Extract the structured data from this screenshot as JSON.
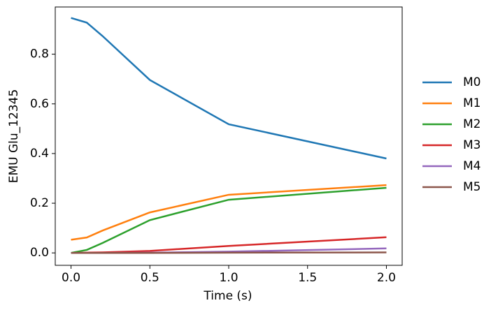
{
  "chart_data": {
    "type": "line",
    "xlabel": "Time (s)",
    "ylabel": "EMU Glu_12345",
    "x": [
      0,
      0.1,
      0.2,
      0.5,
      1.0,
      2.0
    ],
    "series": [
      {
        "name": "M0",
        "color": "#1f77b4",
        "values": [
          0.946,
          0.927,
          0.873,
          0.696,
          0.518,
          0.38
        ]
      },
      {
        "name": "M1",
        "color": "#ff7f0e",
        "values": [
          0.053,
          0.062,
          0.09,
          0.163,
          0.234,
          0.273
        ]
      },
      {
        "name": "M2",
        "color": "#2ca02c",
        "values": [
          0.0,
          0.012,
          0.04,
          0.132,
          0.214,
          0.262
        ]
      },
      {
        "name": "M3",
        "color": "#d62728",
        "values": [
          0.0,
          0.001,
          0.002,
          0.008,
          0.028,
          0.063
        ]
      },
      {
        "name": "M4",
        "color": "#9467bd",
        "values": [
          0.0,
          0.0,
          0.0,
          0.001,
          0.005,
          0.018
        ]
      },
      {
        "name": "M5",
        "color": "#8c564b",
        "values": [
          0.0,
          0.0,
          0.0,
          0.0,
          0.001,
          0.002
        ]
      }
    ],
    "xlim": [
      -0.1,
      2.1
    ],
    "ylim": [
      -0.05,
      0.99
    ],
    "xticks": [
      {
        "value": 0,
        "label": "0.0"
      },
      0.5,
      {
        "value": 1,
        "label": "1.0"
      },
      1.5,
      {
        "value": 2,
        "label": "2.0"
      }
    ],
    "yticks": [
      {
        "value": 0,
        "label": "0.0"
      },
      0.2,
      0.4,
      0.6,
      0.8
    ],
    "legend": "outside-right"
  }
}
